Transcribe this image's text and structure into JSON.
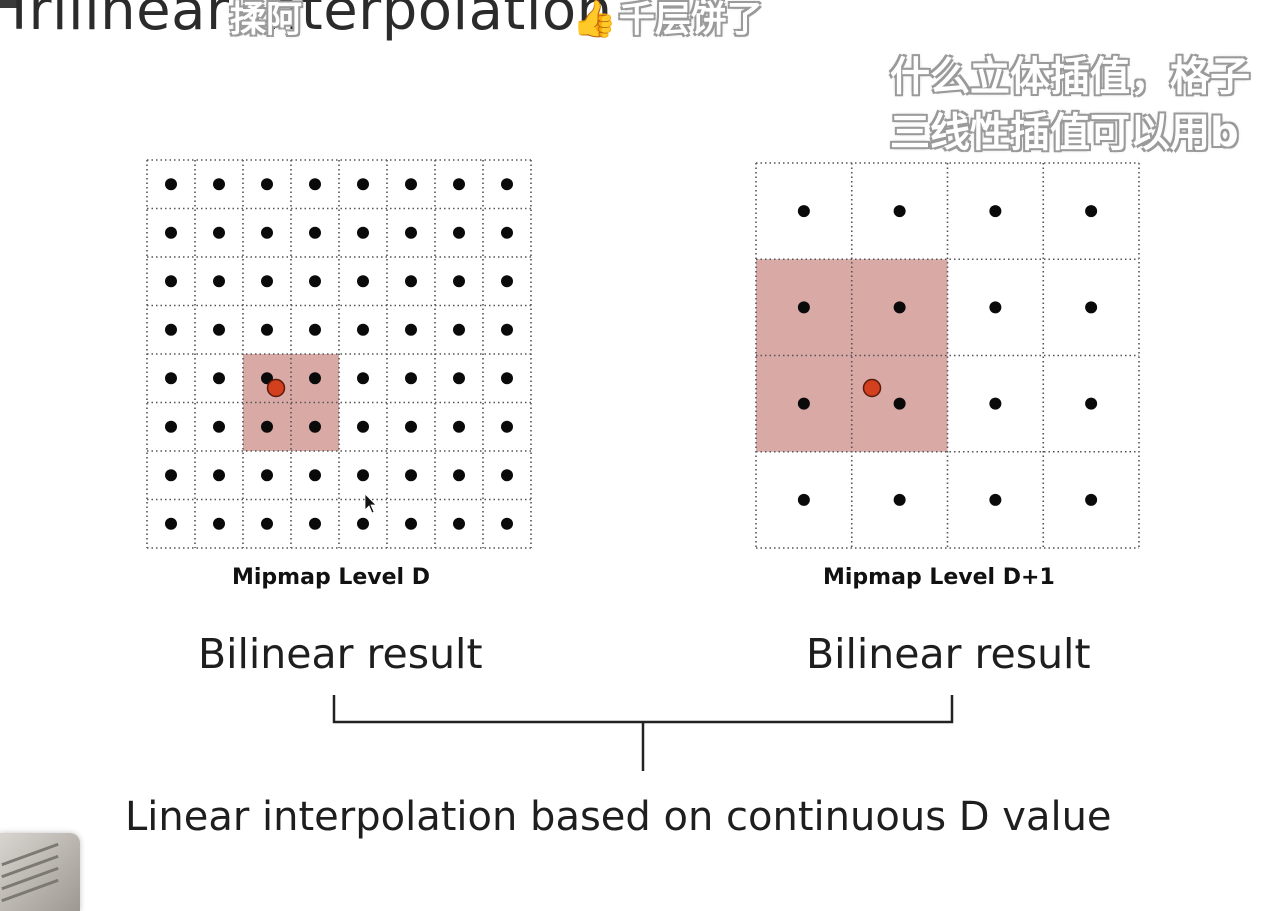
{
  "slide": {
    "title": "Trilinear Interpolation",
    "level_d_label": "Mipmap Level D",
    "level_d1_label": "Mipmap Level D+1",
    "bilinear_left": "Bilinear result",
    "bilinear_right": "Bilinear result",
    "bottom_text": "Linear interpolation based on continuous D value"
  },
  "danmaku": {
    "comment_1": "揉阿",
    "comment_2": "千层饼了",
    "comment_3": "什么立体插值，格子",
    "comment_4": "三线性插值可以用b"
  },
  "grids": {
    "level_d": {
      "size": 8,
      "highlight_cols": [
        2,
        3
      ],
      "highlight_rows": [
        4,
        5
      ]
    },
    "level_d1": {
      "size": 4,
      "highlight_cols": [
        0,
        1
      ],
      "highlight_rows": [
        1,
        2
      ]
    }
  },
  "colors": {
    "highlight": "#d9a9a6",
    "sample_point": "#d2401e",
    "texel_dot": "#0a0a0a",
    "grid_line": "#555555"
  },
  "icons": [
    "thumbs-up-icon",
    "cursor-arrow-icon"
  ]
}
